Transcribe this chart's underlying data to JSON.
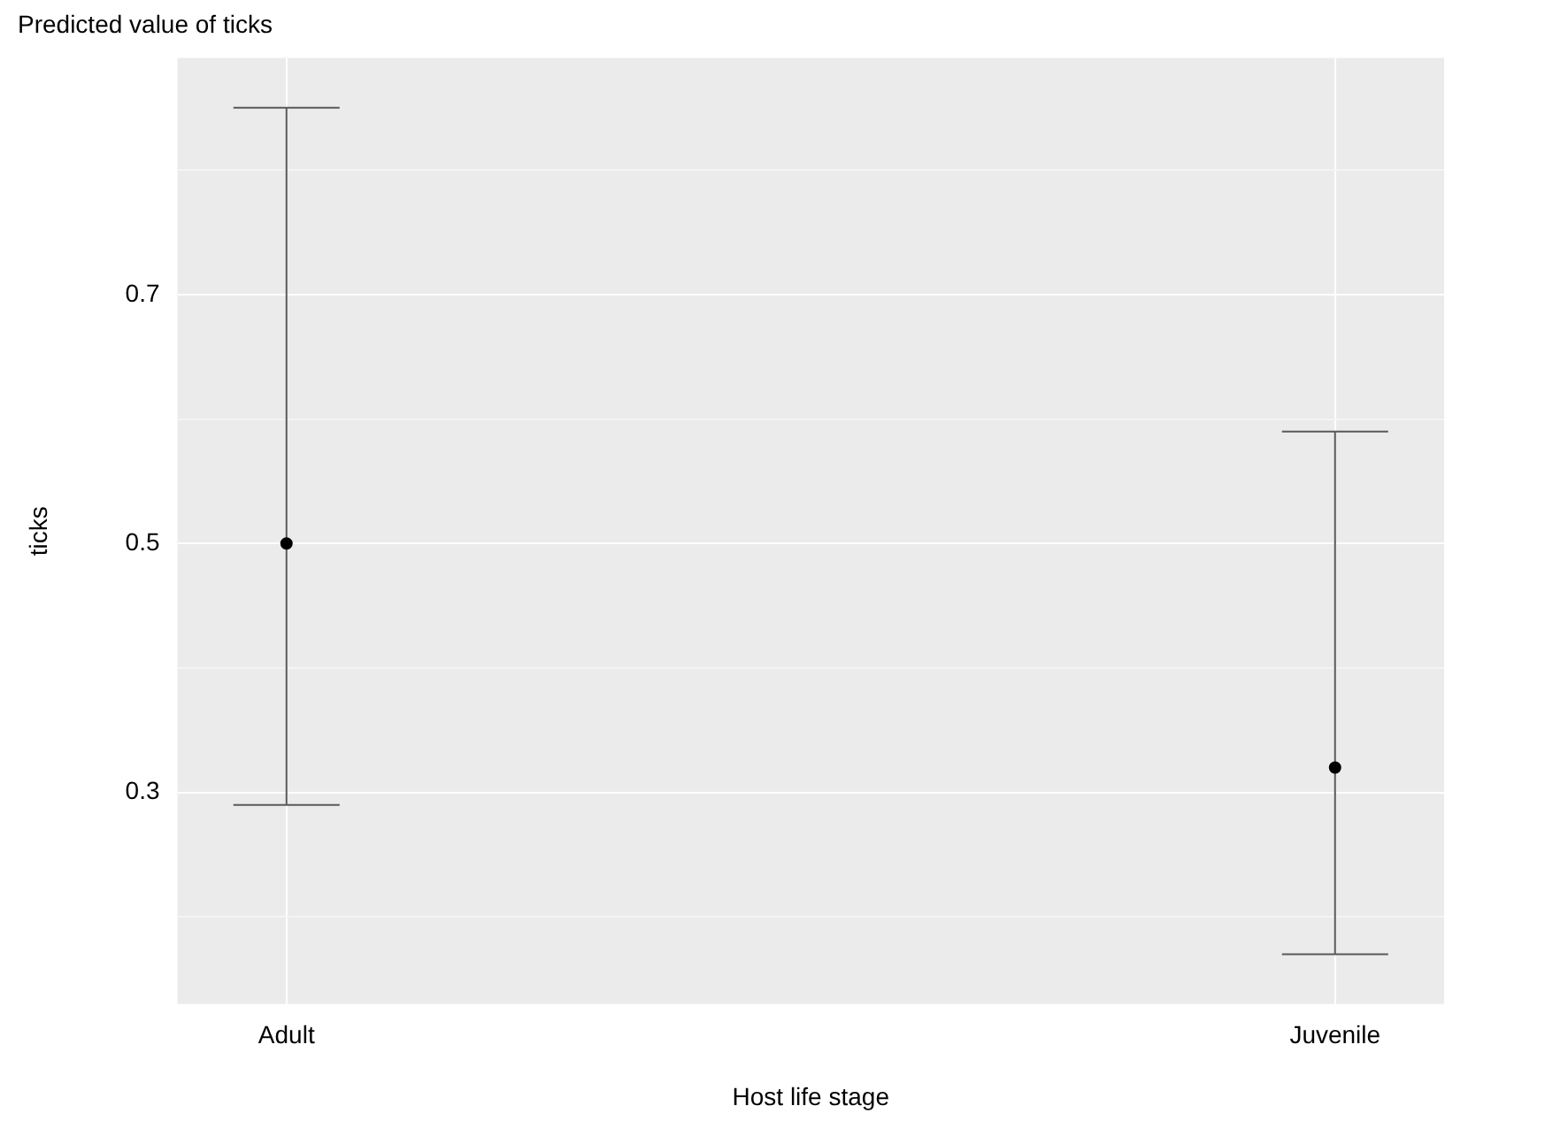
{
  "chart_data": {
    "type": "scatter",
    "title": "Predicted value of ticks",
    "xlabel": "Host life stage",
    "ylabel": "ticks",
    "categories": [
      "Adult",
      "Juvenile"
    ],
    "color": "#000000",
    "values": [
      0.5,
      0.32
    ],
    "errors": [
      [
        0.29,
        0.85
      ],
      [
        0.17,
        0.59
      ]
    ],
    "ylim": [
      0.13,
      0.89
    ],
    "yticks": [
      {
        "value": 0.2,
        "label": null
      },
      0.3,
      {
        "value": 0.4,
        "label": null
      },
      0.5,
      {
        "value": 0.6,
        "label": null
      },
      0.7,
      {
        "value": 0.8,
        "label": null
      }
    ],
    "grid": true,
    "marker": "circle",
    "legend": false
  }
}
